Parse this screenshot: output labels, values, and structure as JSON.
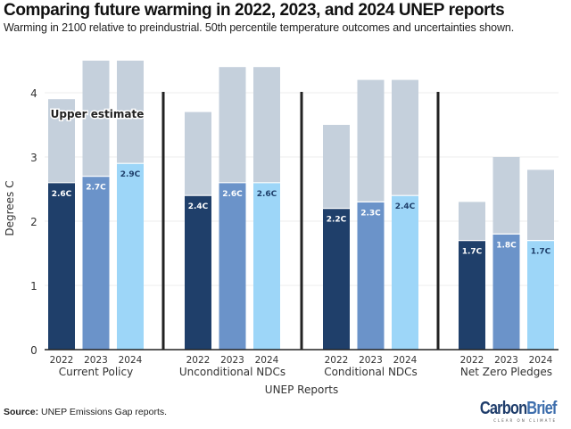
{
  "header": {
    "title": "Comparing future warming in 2022, 2023, and 2024 UNEP reports",
    "subtitle": "Warming in 2100 relative to preindustrial. 50th percentile temperature outcomes and uncertainties shown."
  },
  "footer": {
    "source_label": "Source:",
    "source_text": " UNEP Emissions Gap reports.",
    "logo_carbon": "Carbon",
    "logo_brief": "Brief",
    "logo_tagline": "CLEAR ON CLIMATE"
  },
  "chart_data": {
    "type": "bar",
    "title": "Comparing future warming in 2022, 2023, and 2024 UNEP reports",
    "subtitle": "Warming in 2100 relative to preindustrial. 50th percentile temperature outcomes and uncertainties shown.",
    "xlabel": "UNEP Reports",
    "ylabel": "Degrees C",
    "ylim": [
      0,
      4.6
    ],
    "yticks": [
      0,
      1,
      2,
      3,
      4
    ],
    "grid": true,
    "annotation": "Upper estimate",
    "years": [
      "2022",
      "2023",
      "2024"
    ],
    "year_colors": [
      "#1f3f6a",
      "#6b93c9",
      "#9dd6f8"
    ],
    "upper_color": "#c5d0dc",
    "label_text_colors": [
      "#ffffff",
      "#ffffff",
      "#1f3f6a"
    ],
    "groups": [
      {
        "name": "Current Policy",
        "median": [
          2.6,
          2.7,
          2.9
        ],
        "upper": [
          3.9,
          4.5,
          4.5
        ],
        "labels": [
          "2.6C",
          "2.7C",
          "2.9C"
        ]
      },
      {
        "name": "Unconditional NDCs",
        "median": [
          2.4,
          2.6,
          2.6
        ],
        "upper": [
          3.7,
          4.4,
          4.4
        ],
        "labels": [
          "2.4C",
          "2.6C",
          "2.6C"
        ]
      },
      {
        "name": "Conditional NDCs",
        "median": [
          2.2,
          2.3,
          2.4
        ],
        "upper": [
          3.5,
          4.2,
          4.2
        ],
        "labels": [
          "2.2C",
          "2.3C",
          "2.4C"
        ]
      },
      {
        "name": "Net Zero Pledges",
        "median": [
          1.7,
          1.8,
          1.7
        ],
        "upper": [
          2.3,
          3.0,
          2.8
        ],
        "labels": [
          "1.7C",
          "1.8C",
          "1.7C"
        ]
      }
    ]
  }
}
